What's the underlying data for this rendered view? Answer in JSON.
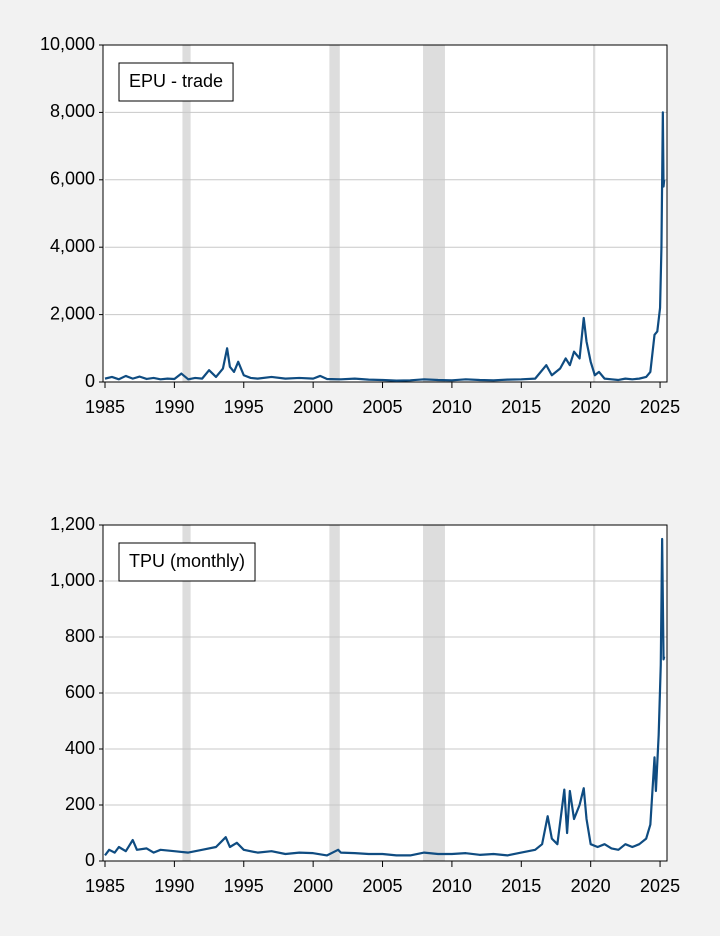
{
  "chart_data": [
    {
      "type": "line",
      "x": [
        1985,
        1985.5,
        1986,
        1986.5,
        1987,
        1987.5,
        1988,
        1988.5,
        1989,
        1989.5,
        1990,
        1990.5,
        1991,
        1991.5,
        1992,
        1992.5,
        1993,
        1993.5,
        1993.8,
        1994,
        1994.3,
        1994.6,
        1995,
        1995.5,
        1996,
        1997,
        1998,
        1999,
        2000,
        2000.5,
        2001,
        2002,
        2003,
        2004,
        2005,
        2006,
        2007,
        2008,
        2009,
        2010,
        2011,
        2012,
        2013,
        2014,
        2015,
        2016,
        2016.8,
        2017.2,
        2017.8,
        2018.2,
        2018.5,
        2018.8,
        2019.2,
        2019.5,
        2019.7,
        2020,
        2020.3,
        2020.6,
        2021,
        2021.5,
        2022,
        2022.5,
        2023,
        2023.5,
        2024,
        2024.3,
        2024.6,
        2024.8,
        2025,
        2025.1,
        2025.2,
        2025.25,
        2025.3
      ],
      "series": [
        {
          "name": "EPU - trade",
          "color": "#0f4c81",
          "values": [
            100,
            150,
            80,
            180,
            100,
            160,
            90,
            120,
            80,
            100,
            90,
            250,
            80,
            120,
            100,
            350,
            150,
            400,
            1000,
            450,
            300,
            600,
            200,
            120,
            100,
            150,
            100,
            120,
            100,
            180,
            90,
            80,
            100,
            70,
            60,
            40,
            50,
            80,
            60,
            50,
            80,
            60,
            50,
            70,
            80,
            100,
            500,
            200,
            400,
            700,
            500,
            900,
            700,
            1900,
            1200,
            600,
            200,
            300,
            100,
            80,
            60,
            100,
            80,
            100,
            150,
            300,
            1400,
            1500,
            2200,
            4000,
            8000,
            5800,
            6000
          ]
        }
      ],
      "xlim": [
        1985,
        2025.5
      ],
      "xticks": [
        1985,
        1990,
        1995,
        2000,
        2005,
        2010,
        2015,
        2020,
        2025
      ],
      "ylim": [
        0,
        10000
      ],
      "yticks": [
        0,
        {
          "value": 2000,
          "label": "2,000"
        },
        {
          "value": 4000,
          "label": "4,000"
        },
        {
          "value": 6000,
          "label": "6,000"
        },
        {
          "value": 8000,
          "label": "8,000"
        },
        {
          "value": 10000,
          "label": "10,000"
        }
      ],
      "grid": true,
      "legend": "top-left",
      "shaded": [
        [
          1990.58,
          1991.17
        ],
        [
          2001.17,
          2001.92
        ],
        [
          2007.92,
          2009.5
        ],
        [
          2020.17,
          2020.33
        ]
      ],
      "shade_color": "#dddddd"
    },
    {
      "type": "line",
      "x": [
        1985,
        1985.3,
        1985.7,
        1986,
        1986.5,
        1987,
        1987.3,
        1988,
        1988.5,
        1989,
        1990,
        1991,
        1992,
        1993,
        1993.7,
        1994,
        1994.5,
        1995,
        1996,
        1997,
        1998,
        1999,
        2000,
        2001,
        2001.8,
        2002,
        2003,
        2004,
        2005,
        2006,
        2007,
        2008,
        2009,
        2010,
        2011,
        2012,
        2013,
        2014,
        2015,
        2016,
        2016.5,
        2016.9,
        2017.2,
        2017.6,
        2018.1,
        2018.3,
        2018.5,
        2018.8,
        2019.2,
        2019.5,
        2019.7,
        2020,
        2020.5,
        2021,
        2021.5,
        2022,
        2022.5,
        2023,
        2023.5,
        2024,
        2024.3,
        2024.6,
        2024.7,
        2024.9,
        2025.05,
        2025.15,
        2025.25,
        2025.3
      ],
      "series": [
        {
          "name": "TPU (monthly)",
          "color": "#0f4c81",
          "values": [
            20,
            40,
            30,
            50,
            35,
            75,
            40,
            45,
            30,
            40,
            35,
            30,
            40,
            50,
            85,
            50,
            65,
            40,
            30,
            35,
            25,
            30,
            28,
            20,
            40,
            30,
            28,
            25,
            25,
            20,
            20,
            30,
            25,
            25,
            28,
            22,
            25,
            20,
            30,
            40,
            60,
            160,
            80,
            60,
            255,
            100,
            250,
            150,
            200,
            260,
            150,
            60,
            50,
            60,
            45,
            40,
            60,
            50,
            60,
            80,
            130,
            370,
            250,
            450,
            700,
            1150,
            720,
            730
          ]
        }
      ],
      "xlim": [
        1985,
        2025.5
      ],
      "xticks": [
        1985,
        1990,
        1995,
        2000,
        2005,
        2010,
        2015,
        2020,
        2025
      ],
      "ylim": [
        0,
        1200
      ],
      "yticks": [
        0,
        200,
        400,
        600,
        800,
        {
          "value": 1000,
          "label": "1,000"
        },
        {
          "value": 1200,
          "label": "1,200"
        }
      ],
      "grid": true,
      "legend": "top-left",
      "shaded": [
        [
          1990.58,
          1991.17
        ],
        [
          2001.17,
          2001.92
        ],
        [
          2007.92,
          2009.5
        ],
        [
          2020.17,
          2020.33
        ]
      ],
      "shade_color": "#dddddd"
    }
  ]
}
